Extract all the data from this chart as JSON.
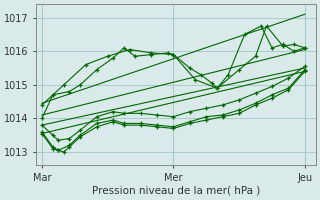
{
  "bg_color": "#daeaea",
  "grid_color": "#aacccc",
  "line_color": "#006600",
  "marker_color": "#006600",
  "xlabel": "Pression niveau de la mer( hPa )",
  "yticks": [
    1013,
    1014,
    1015,
    1016,
    1017
  ],
  "ylim": [
    1012.6,
    1017.4
  ],
  "xtick_labels": [
    "Mar",
    "Mer",
    "Jeu"
  ],
  "xtick_positions": [
    0,
    12,
    24
  ],
  "xlim": [
    -0.5,
    25
  ],
  "series": [
    [
      0.0,
      1014.0,
      1.0,
      1014.7,
      2.5,
      1014.8,
      3.5,
      1015.0,
      5.0,
      1015.45,
      6.5,
      1015.8,
      7.5,
      1016.1,
      8.5,
      1015.85,
      10.0,
      1015.9,
      11.5,
      1015.95,
      12.0,
      1015.9,
      13.5,
      1015.5,
      14.5,
      1015.3,
      15.5,
      1015.05,
      16.0,
      1014.9,
      17.0,
      1015.3,
      18.5,
      1016.5,
      20.0,
      1016.75,
      21.0,
      1016.1,
      22.0,
      1016.2,
      23.0,
      1016.0,
      24.0,
      1016.1
    ],
    [
      0.0,
      1014.4,
      2.0,
      1015.0,
      4.0,
      1015.6,
      6.0,
      1015.85,
      8.0,
      1016.05,
      10.0,
      1015.95,
      12.0,
      1015.9,
      14.0,
      1015.15,
      16.0,
      1014.9,
      18.0,
      1015.45,
      19.5,
      1015.85,
      20.5,
      1016.75,
      22.0,
      1016.15,
      23.0,
      1016.2,
      24.0,
      1016.1
    ],
    [
      0.0,
      1013.8,
      1.0,
      1013.5,
      1.5,
      1013.35,
      2.5,
      1013.4,
      3.5,
      1013.65,
      5.0,
      1014.05,
      6.5,
      1014.2,
      7.5,
      1014.15,
      9.0,
      1014.15,
      10.5,
      1014.1,
      12.0,
      1014.05,
      13.5,
      1014.2,
      15.0,
      1014.3,
      16.5,
      1014.4,
      18.0,
      1014.55,
      19.5,
      1014.75,
      21.0,
      1014.95,
      22.5,
      1015.2,
      24.0,
      1015.55
    ],
    [
      0.0,
      1013.6,
      1.0,
      1013.15,
      1.5,
      1013.05,
      2.5,
      1013.2,
      3.5,
      1013.5,
      5.0,
      1013.85,
      6.5,
      1013.95,
      7.5,
      1013.85,
      9.0,
      1013.85,
      10.5,
      1013.8,
      12.0,
      1013.75,
      13.5,
      1013.9,
      15.0,
      1014.05,
      16.5,
      1014.1,
      18.0,
      1014.25,
      19.5,
      1014.45,
      21.0,
      1014.7,
      22.5,
      1014.9,
      24.0,
      1015.45
    ],
    [
      0.0,
      1013.55,
      1.0,
      1013.1,
      1.5,
      1013.05,
      2.0,
      1013.0,
      2.5,
      1013.15,
      3.5,
      1013.45,
      5.0,
      1013.75,
      6.5,
      1013.9,
      7.5,
      1013.8,
      9.0,
      1013.8,
      10.5,
      1013.75,
      12.0,
      1013.7,
      13.5,
      1013.85,
      15.0,
      1013.95,
      16.5,
      1014.05,
      18.0,
      1014.15,
      19.5,
      1014.4,
      21.0,
      1014.6,
      22.5,
      1014.85,
      24.0,
      1015.4
    ],
    [
      0.0,
      1014.45,
      24.0,
      1017.1
    ],
    [
      0.0,
      1014.1,
      24.0,
      1016.05
    ],
    [
      0.0,
      1013.8,
      24.0,
      1015.5
    ],
    [
      0.0,
      1013.55,
      24.0,
      1015.4
    ]
  ],
  "vlines": [
    0,
    12,
    24
  ]
}
